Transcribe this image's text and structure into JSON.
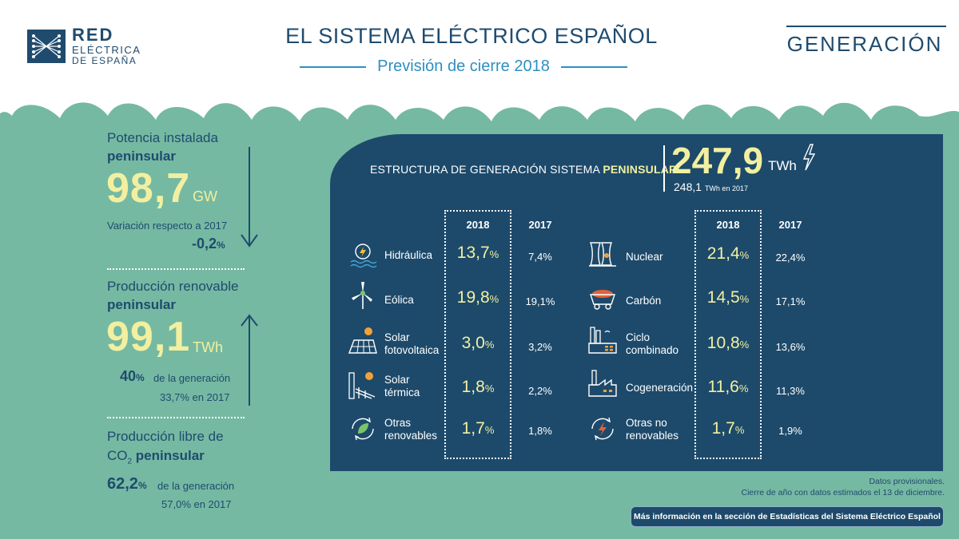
{
  "header": {
    "logo": {
      "line1": "RED",
      "line2": "ELÉCTRICA",
      "line3": "DE ESPAÑA"
    },
    "title": "EL SISTEMA ELÉCTRICO ESPAÑOL",
    "subtitle": "Previsión de cierre 2018",
    "section": "GENERACIÓN"
  },
  "left": {
    "potencia": {
      "label1": "Potencia instalada",
      "label2": "peninsular",
      "value": "98,7",
      "unit": "GW",
      "variation_label": "Variación respecto a 2017",
      "variation_value": "-0,2",
      "variation_pct": "%"
    },
    "renovable": {
      "label1": "Producción renovable",
      "label2": "peninsular",
      "value": "99,1",
      "unit": "TWh",
      "share": "40",
      "share_pct": "%",
      "share_text": "de la generación",
      "prev_value": "33,7",
      "prev_text": "% en 2017"
    },
    "libre_co2": {
      "label1": "Producción libre de",
      "label2a": "CO",
      "label2sub": "2",
      "label2b": "peninsular",
      "share": "62,2",
      "share_pct": "%",
      "share_text": "de la generación",
      "prev_value": "57,0",
      "prev_text": "% en 2017"
    }
  },
  "panel": {
    "title_prefix": "ESTRUCTURA DE GENERACIÓN SISTEMA",
    "title_bold": "PENINSULAR",
    "total_value": "247,9",
    "total_unit": "TWh",
    "total_prev_value": "248,1",
    "total_prev_text": "TWh en 2017",
    "col_2018": "2018",
    "col_2017": "2017",
    "pct": "%",
    "left_rows": [
      {
        "label1": "Hidráulica",
        "label2": "",
        "v2018": "13,7",
        "v2017": "7,4%",
        "icon": "hydro-icon"
      },
      {
        "label1": "Eólica",
        "label2": "",
        "v2018": "19,8",
        "v2017": "19,1%",
        "icon": "wind-turbine-icon"
      },
      {
        "label1": "Solar",
        "label2": "fotovoltaica",
        "v2018": "3,0",
        "v2017": "3,2%",
        "icon": "solar-panel-icon"
      },
      {
        "label1": "Solar",
        "label2": "térmica",
        "v2018": "1,8",
        "v2017": "2,2%",
        "icon": "solar-thermal-icon"
      },
      {
        "label1": "Otras",
        "label2": "renovables",
        "v2018": "1,7",
        "v2017": "1,8%",
        "icon": "leaf-cycle-icon"
      }
    ],
    "right_rows": [
      {
        "label1": "Nuclear",
        "label2": "",
        "v2018": "21,4",
        "v2017": "22,4%",
        "icon": "nuclear-plant-icon"
      },
      {
        "label1": "Carbón",
        "label2": "",
        "v2018": "14,5",
        "v2017": "17,1%",
        "icon": "coal-cart-icon"
      },
      {
        "label1": "Ciclo",
        "label2": "combinado",
        "v2018": "10,8",
        "v2017": "13,6%",
        "icon": "combined-cycle-icon"
      },
      {
        "label1": "Cogeneración",
        "label2": "",
        "v2018": "11,6",
        "v2017": "11,3%",
        "icon": "factory-icon"
      },
      {
        "label1": "Otras no",
        "label2": "renovables",
        "v2018": "1,7",
        "v2017": "1,9%",
        "icon": "bolt-cycle-icon"
      }
    ]
  },
  "footer": {
    "note1": "Datos provisionales.",
    "note2": "Cierre de año con datos estimados el 13 de diciembre.",
    "more_info": "Más información en la sección de Estadísticas del Sistema Eléctrico Español"
  },
  "colors": {
    "background": "#75b9a2",
    "navy": "#1d4a6b",
    "highlight": "#f2f0a0",
    "accent_blue": "#2f8fc0"
  }
}
